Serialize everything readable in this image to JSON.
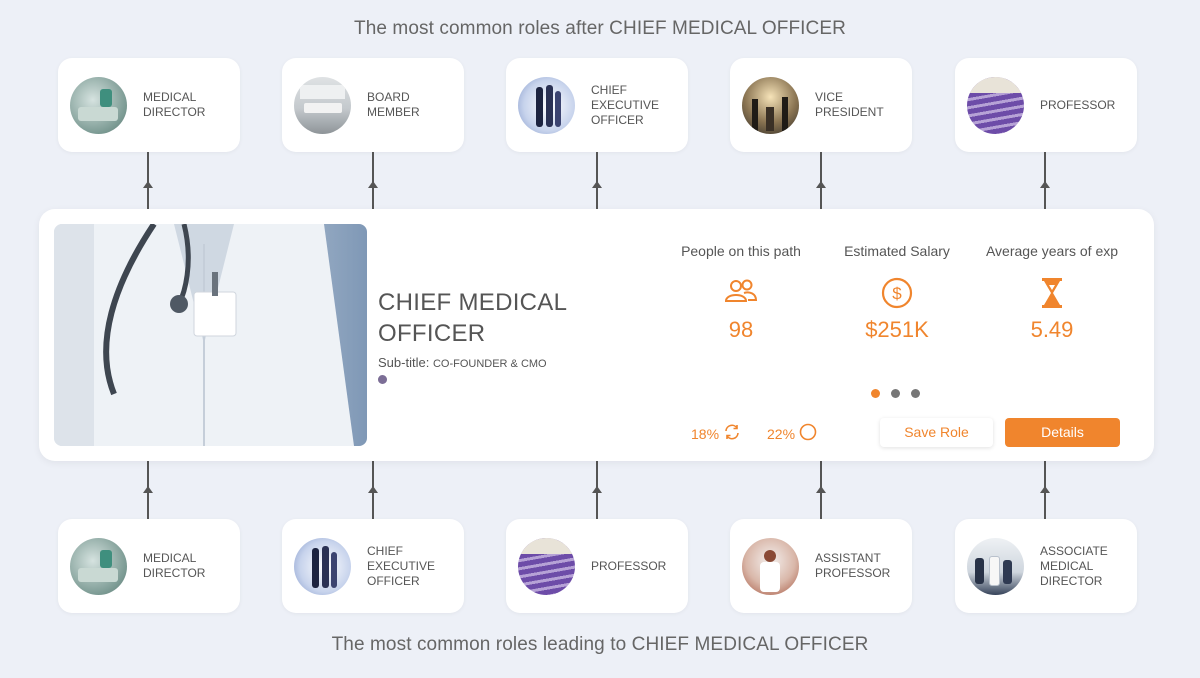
{
  "top_heading": "The most common roles after CHIEF MEDICAL OFFICER",
  "bottom_heading": "The most common roles leading to CHIEF MEDICAL OFFICER",
  "next_roles": [
    {
      "label": "MEDICAL DIRECTOR"
    },
    {
      "label": "BOARD MEMBER"
    },
    {
      "label": "CHIEF EXECUTIVE OFFICER"
    },
    {
      "label": "VICE PRESIDENT"
    },
    {
      "label": "PROFESSOR"
    }
  ],
  "previous_roles": [
    {
      "label": "MEDICAL DIRECTOR"
    },
    {
      "label": "CHIEF EXECUTIVE OFFICER"
    },
    {
      "label": "PROFESSOR"
    },
    {
      "label": "ASSISTANT PROFESSOR"
    },
    {
      "label": "ASSOCIATE MEDICAL DIRECTOR"
    }
  ],
  "main": {
    "title": "CHIEF MEDICAL OFFICER",
    "subtitle_label": "Sub-title:",
    "subtitle_value": "CO-FOUNDER & CMO",
    "stats": [
      {
        "label": "People on this path",
        "value": "98",
        "icon": "people-icon"
      },
      {
        "label": "Estimated Salary",
        "value": "$251K",
        "icon": "dollar-icon"
      },
      {
        "label": "Average years of exp",
        "value": "5.49",
        "icon": "hourglass-icon"
      }
    ],
    "pct_repeat": "18%",
    "pct_other": "22%",
    "save_label": "Save Role",
    "details_label": "Details"
  },
  "colors": {
    "accent": "#f0852d",
    "background": "#edf0f7",
    "text": "#555555"
  }
}
